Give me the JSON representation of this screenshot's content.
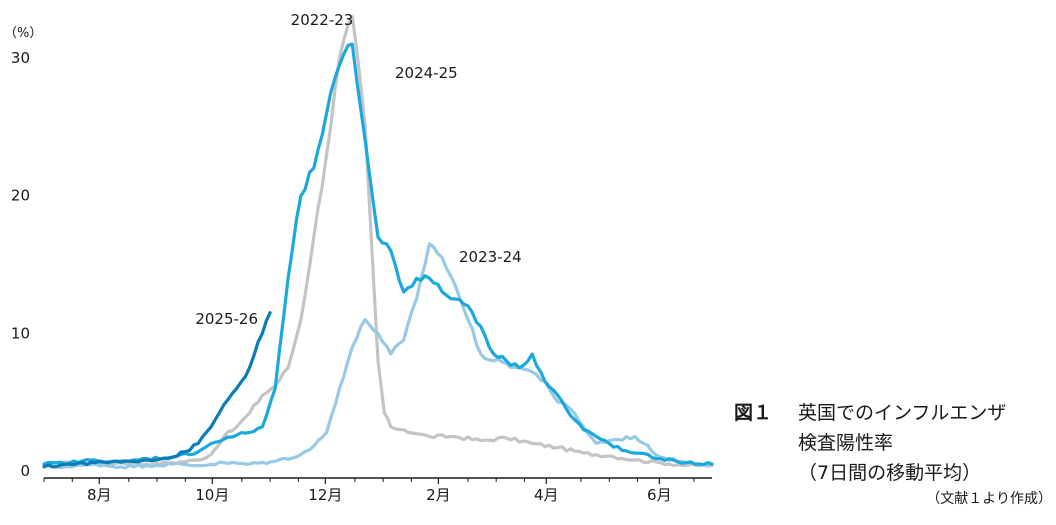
{
  "caption": {
    "figure_label": "図１",
    "title_line1": "英国でのインフルエンザ",
    "title_line2": "検査陽性率",
    "title_line3": "（7日間の移動平均）",
    "source": "（文献１より作成）"
  },
  "chart_data": {
    "type": "line",
    "y_unit": "（%）",
    "ylim": [
      0,
      33
    ],
    "y_ticks": [
      0,
      10,
      20,
      30
    ],
    "x_unit": "week since start of July",
    "xlim": [
      0,
      52
    ],
    "x_ticks": [
      {
        "week": 4.3,
        "label": "8月"
      },
      {
        "week": 13.1,
        "label": "10月"
      },
      {
        "week": 21.9,
        "label": "12月"
      },
      {
        "week": 30.7,
        "label": "2月"
      },
      {
        "week": 39.1,
        "label": "4月"
      },
      {
        "week": 47.9,
        "label": "6月"
      }
    ],
    "grid": false,
    "legend": "inline labels",
    "series": [
      {
        "name": "2022-23",
        "color": "#c4c4c4",
        "x": [
          0,
          2,
          4,
          6,
          8,
          10,
          12,
          13,
          14,
          15,
          16,
          17,
          18,
          19,
          20,
          21,
          22,
          23,
          24,
          25,
          26,
          26.5,
          27,
          28,
          29,
          30,
          32,
          34,
          36,
          38,
          40,
          42,
          44,
          46,
          48,
          50,
          52
        ],
        "y": [
          0.5,
          0.6,
          0.5,
          0.6,
          0.5,
          0.6,
          0.8,
          1.2,
          2.5,
          3.2,
          4.2,
          5.5,
          6.2,
          7.5,
          11,
          17,
          23,
          30,
          33,
          25,
          8,
          4.2,
          3.2,
          3.0,
          2.7,
          2.5,
          2.5,
          2.2,
          2.4,
          2.0,
          1.7,
          1.3,
          1.1,
          0.8,
          0.6,
          0.4,
          0.4
        ]
      },
      {
        "name": "2023-24",
        "color": "#96cae5",
        "x": [
          0,
          2,
          4,
          6,
          8,
          10,
          12,
          14,
          16,
          18,
          20,
          21,
          22,
          23,
          24,
          25,
          26,
          27,
          28,
          29,
          30,
          31,
          32,
          33,
          34,
          35,
          36,
          37,
          38,
          39,
          40,
          41,
          42,
          43,
          44,
          46,
          48,
          50,
          52
        ],
        "y": [
          0.4,
          0.3,
          0.5,
          0.3,
          0.4,
          0.5,
          0.4,
          0.6,
          0.5,
          0.7,
          1.2,
          1.8,
          2.8,
          6.0,
          9.0,
          11.0,
          10.0,
          8.5,
          9.5,
          12.5,
          16.5,
          15.5,
          13.5,
          11.0,
          8.5,
          8.0,
          7.8,
          7.5,
          7.2,
          6.5,
          5.0,
          4.5,
          3.2,
          2.0,
          2.2,
          2.5,
          1.0,
          0.6,
          0.5
        ]
      },
      {
        "name": "2024-25",
        "color": "#1ba8dc",
        "x": [
          0,
          2,
          4,
          6,
          8,
          10,
          12,
          13,
          14,
          15,
          16,
          17,
          18,
          19,
          20,
          21,
          22,
          23,
          24,
          25,
          26,
          27,
          28,
          29,
          30,
          31,
          32,
          33,
          34,
          35,
          36,
          37,
          38,
          39,
          40,
          41,
          42,
          43,
          44,
          45,
          46,
          48,
          50,
          52
        ],
        "y": [
          0.5,
          0.6,
          0.8,
          0.6,
          0.9,
          1.0,
          1.4,
          2.0,
          2.3,
          2.6,
          2.8,
          3.2,
          6.0,
          14.0,
          20.0,
          22.0,
          26.0,
          29.5,
          31.0,
          24.0,
          17.0,
          16.0,
          13.0,
          14.0,
          14.0,
          13.0,
          12.5,
          12.0,
          10.5,
          8.5,
          8.0,
          7.5,
          8.5,
          6.5,
          5.5,
          4.0,
          3.0,
          2.5,
          2.0,
          1.5,
          1.3,
          0.9,
          0.6,
          0.5
        ]
      },
      {
        "name": "2025-26",
        "color": "#0a7db8",
        "x": [
          0,
          2,
          4,
          6,
          8,
          10,
          11,
          12,
          13,
          14,
          15,
          16,
          17,
          17.6
        ],
        "y": [
          0.3,
          0.5,
          0.6,
          0.7,
          0.8,
          1.0,
          1.4,
          2.0,
          3.2,
          4.8,
          6.0,
          7.5,
          10.0,
          11.5
        ]
      }
    ],
    "series_labels": [
      {
        "name": "2022-23",
        "text": "2022-23"
      },
      {
        "name": "2023-24",
        "text": "2023-24"
      },
      {
        "name": "2024-25",
        "text": "2024-25"
      },
      {
        "name": "2025-26",
        "text": "2025-26"
      }
    ]
  }
}
